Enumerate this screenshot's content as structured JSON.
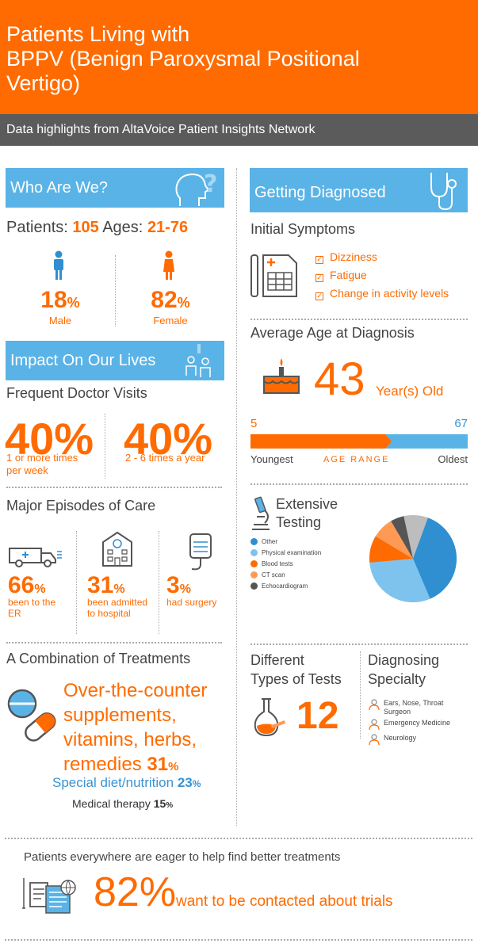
{
  "header": {
    "title_line1": "Patients Living with",
    "title_line2": "BPPV (Benign Paroxysmal Positional",
    "title_line3": "Vertigo)",
    "subtitle": "Data highlights from AltaVoice Patient Insights Network"
  },
  "who": {
    "title": "Who Are We?",
    "patients_label": "Patients:",
    "patients_value": "105",
    "ages_label": "Ages:",
    "ages_value": "21-76",
    "male_pct": "18",
    "male_label": "Male",
    "female_pct": "82",
    "female_label": "Female",
    "pct_sign": "%"
  },
  "impact": {
    "title": "Impact On Our Lives",
    "visits_title": "Frequent Doctor Visits",
    "visit1_pct": "40%",
    "visit1_label": "1 or more times per week",
    "visit2_pct": "40%",
    "visit2_label": "2 - 6 times a year",
    "episodes_title": "Major Episodes of Care",
    "er_pct": "66",
    "er_label": "been to the ER",
    "hosp_pct": "31",
    "hosp_label": "been admitted to hospital",
    "surg_pct": "3",
    "surg_label": "had surgery"
  },
  "treatments": {
    "title": "A Combination of Treatments",
    "otc_line1": "Over-the-counter",
    "otc_line2": "supplements,",
    "otc_line3": "vitamins, herbs,",
    "otc_line4": "remedies",
    "otc_pct": "31",
    "diet_label": "Special diet/nutrition",
    "diet_pct": "23",
    "therapy_label": "Medical therapy",
    "therapy_pct": "15"
  },
  "diagnosed": {
    "title": "Getting Diagnosed",
    "symptoms_title": "Initial Symptoms",
    "symptoms": [
      "Dizziness",
      "Fatigue",
      "Change in activity levels"
    ],
    "avg_age_title": "Average Age at Diagnosis",
    "avg_age": "43",
    "avg_age_unit": "Year(s) Old",
    "range_min": "5",
    "range_max": "67",
    "youngest": "Youngest",
    "range_label": "AGE RANGE",
    "oldest": "Oldest",
    "testing_line1": "Extensive",
    "testing_line2": "Testing",
    "test_types_line1": "Different",
    "test_types_line2": "Types of Tests",
    "test_types_count": "12",
    "specialty_line1": "Diagnosing",
    "specialty_line2": "Specialty",
    "specialties": [
      "Ears, Nose, Throat Surgeon",
      "Emergency Medicine",
      "Neurology"
    ]
  },
  "chart_data": {
    "type": "pie",
    "title": "Extensive Testing",
    "categories": [
      "Other",
      "Physical examination",
      "Blood tests",
      "CT scan",
      "Echocardiogram"
    ],
    "values": [
      38,
      30,
      10,
      8,
      5
    ],
    "colors": [
      "#2f8fd0",
      "#7ec3ee",
      "#ff6b00",
      "#ff9a55",
      "#555555"
    ],
    "rest_color": "#bdbdbd"
  },
  "footer": {
    "eager_text": "Patients everywhere are eager to help find better treatments",
    "trials_pct": "82%",
    "trials_label": "want to be contacted about trials"
  }
}
